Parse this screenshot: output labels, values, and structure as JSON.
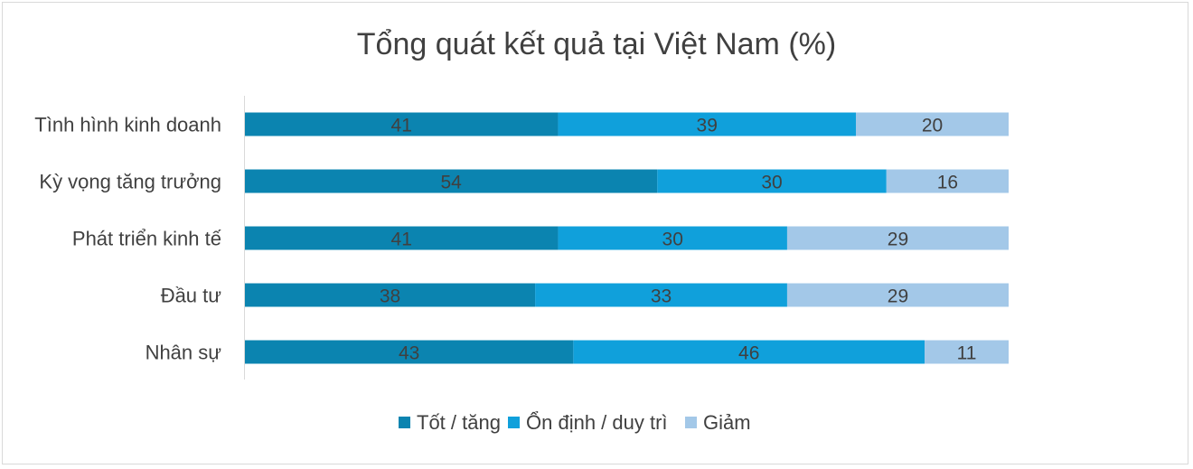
{
  "chart_data": {
    "type": "bar",
    "orientation": "horizontal",
    "stacked": true,
    "title": "Tổng quát kết quả tại Việt Nam (%)",
    "categories": [
      "Tình hình kinh doanh",
      "Kỳ vọng tăng trưởng",
      "Phát triển kinh tế",
      "Đầu tư",
      "Nhân sự"
    ],
    "series": [
      {
        "name": "Tốt / tăng",
        "color": "#0b84b0",
        "values": [
          41,
          54,
          41,
          38,
          43
        ]
      },
      {
        "name": "Ổn định / duy trì",
        "color": "#10a0db",
        "values": [
          39,
          30,
          30,
          33,
          46
        ]
      },
      {
        "name": "Giảm",
        "color": "#a3c8e8",
        "values": [
          20,
          16,
          29,
          29,
          11
        ]
      }
    ],
    "xlim": [
      0,
      100
    ],
    "grid": false,
    "legend": "bottom"
  }
}
